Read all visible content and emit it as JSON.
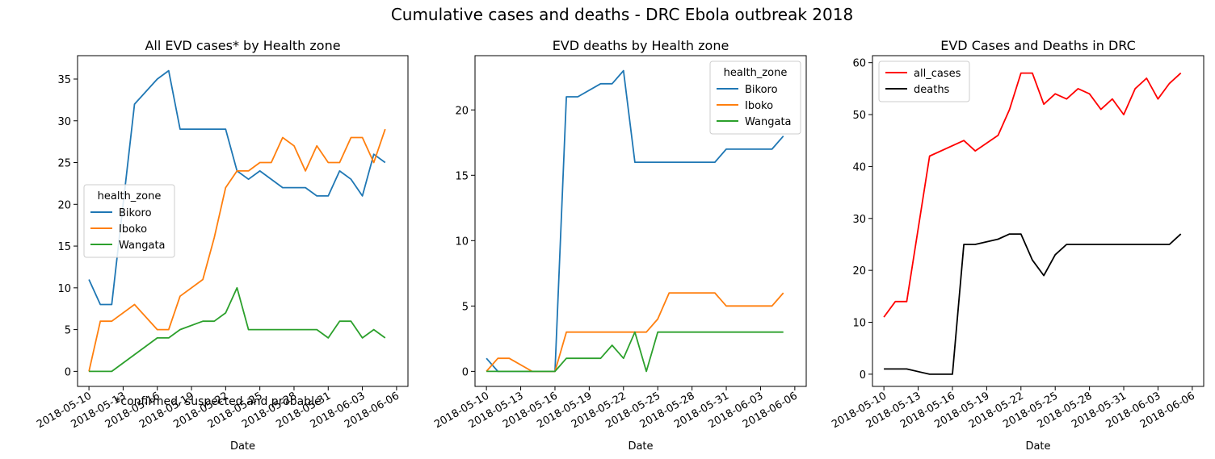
{
  "figure": {
    "suptitle": "Cumulative cases and deaths - DRC Ebola outbreak 2018",
    "footnote": "*confirmed, suspected and probable"
  },
  "chart_data": [
    {
      "type": "line",
      "title": "All EVD cases* by Health zone",
      "xlabel": "Date",
      "ylabel": "",
      "xlim": [
        "2018-05-09",
        "2018-06-07"
      ],
      "ylim": [
        -1.8,
        37.8
      ],
      "yticks": [
        0,
        5,
        10,
        15,
        20,
        25,
        30,
        35
      ],
      "xticks": [
        "2018-05-10",
        "2018-05-13",
        "2018-05-16",
        "2018-05-19",
        "2018-05-22",
        "2018-05-25",
        "2018-05-28",
        "2018-05-31",
        "2018-06-03",
        "2018-06-06"
      ],
      "legend": {
        "title": "health_zone",
        "position": "center-left"
      },
      "series": [
        {
          "name": "Bikoro",
          "color": "#1f77b4",
          "points": [
            [
              "2018-05-10",
              11
            ],
            [
              "2018-05-11",
              8
            ],
            [
              "2018-05-12",
              8
            ],
            [
              "2018-05-14",
              32
            ],
            [
              "2018-05-16",
              35
            ],
            [
              "2018-05-17",
              36
            ],
            [
              "2018-05-18",
              29
            ],
            [
              "2018-05-22",
              29
            ],
            [
              "2018-05-23",
              24
            ],
            [
              "2018-05-24",
              23
            ],
            [
              "2018-05-25",
              24
            ],
            [
              "2018-05-27",
              22
            ],
            [
              "2018-05-29",
              22
            ],
            [
              "2018-05-30",
              21
            ],
            [
              "2018-05-31",
              21
            ],
            [
              "2018-06-01",
              24
            ],
            [
              "2018-06-02",
              23
            ],
            [
              "2018-06-03",
              21
            ],
            [
              "2018-06-04",
              26
            ],
            [
              "2018-06-05",
              25
            ]
          ]
        },
        {
          "name": "Iboko",
          "color": "#ff7f0e",
          "points": [
            [
              "2018-05-10",
              0
            ],
            [
              "2018-05-11",
              6
            ],
            [
              "2018-05-12",
              6
            ],
            [
              "2018-05-14",
              8
            ],
            [
              "2018-05-16",
              5
            ],
            [
              "2018-05-17",
              5
            ],
            [
              "2018-05-18",
              9
            ],
            [
              "2018-05-20",
              11
            ],
            [
              "2018-05-21",
              16
            ],
            [
              "2018-05-22",
              22
            ],
            [
              "2018-05-23",
              24
            ],
            [
              "2018-05-24",
              24
            ],
            [
              "2018-05-25",
              25
            ],
            [
              "2018-05-26",
              25
            ],
            [
              "2018-05-27",
              28
            ],
            [
              "2018-05-28",
              27
            ],
            [
              "2018-05-29",
              24
            ],
            [
              "2018-05-30",
              27
            ],
            [
              "2018-05-31",
              25
            ],
            [
              "2018-06-01",
              25
            ],
            [
              "2018-06-02",
              28
            ],
            [
              "2018-06-03",
              28
            ],
            [
              "2018-06-04",
              25
            ],
            [
              "2018-06-05",
              29
            ]
          ]
        },
        {
          "name": "Wangata",
          "color": "#2ca02c",
          "points": [
            [
              "2018-05-10",
              0
            ],
            [
              "2018-05-12",
              0
            ],
            [
              "2018-05-16",
              4
            ],
            [
              "2018-05-17",
              4
            ],
            [
              "2018-05-18",
              5
            ],
            [
              "2018-05-20",
              6
            ],
            [
              "2018-05-21",
              6
            ],
            [
              "2018-05-22",
              7
            ],
            [
              "2018-05-23",
              10
            ],
            [
              "2018-05-24",
              5
            ],
            [
              "2018-05-30",
              5
            ],
            [
              "2018-05-31",
              4
            ],
            [
              "2018-06-01",
              6
            ],
            [
              "2018-06-02",
              6
            ],
            [
              "2018-06-03",
              4
            ],
            [
              "2018-06-04",
              5
            ],
            [
              "2018-06-05",
              4
            ]
          ]
        }
      ]
    },
    {
      "type": "line",
      "title": "EVD deaths by Health zone",
      "xlabel": "Date",
      "ylabel": "",
      "xlim": [
        "2018-05-09",
        "2018-06-07"
      ],
      "ylim": [
        -1.15,
        24.15
      ],
      "yticks": [
        0,
        5,
        10,
        15,
        20
      ],
      "xticks": [
        "2018-05-10",
        "2018-05-13",
        "2018-05-16",
        "2018-05-19",
        "2018-05-22",
        "2018-05-25",
        "2018-05-28",
        "2018-05-31",
        "2018-06-03",
        "2018-06-06"
      ],
      "legend": {
        "title": "health_zone",
        "position": "upper-right"
      },
      "series": [
        {
          "name": "Bikoro",
          "color": "#1f77b4",
          "points": [
            [
              "2018-05-10",
              1
            ],
            [
              "2018-05-11",
              0
            ],
            [
              "2018-05-16",
              0
            ],
            [
              "2018-05-17",
              21
            ],
            [
              "2018-05-18",
              21
            ],
            [
              "2018-05-20",
              22
            ],
            [
              "2018-05-21",
              22
            ],
            [
              "2018-05-22",
              23
            ],
            [
              "2018-05-23",
              16
            ],
            [
              "2018-05-30",
              16
            ],
            [
              "2018-05-31",
              17
            ],
            [
              "2018-06-04",
              17
            ],
            [
              "2018-06-05",
              18
            ]
          ]
        },
        {
          "name": "Iboko",
          "color": "#ff7f0e",
          "points": [
            [
              "2018-05-10",
              0
            ],
            [
              "2018-05-11",
              1
            ],
            [
              "2018-05-12",
              1
            ],
            [
              "2018-05-14",
              0
            ],
            [
              "2018-05-16",
              0
            ],
            [
              "2018-05-17",
              3
            ],
            [
              "2018-05-24",
              3
            ],
            [
              "2018-05-25",
              4
            ],
            [
              "2018-05-26",
              6
            ],
            [
              "2018-05-30",
              6
            ],
            [
              "2018-05-31",
              5
            ],
            [
              "2018-06-04",
              5
            ],
            [
              "2018-06-05",
              6
            ]
          ]
        },
        {
          "name": "Wangata",
          "color": "#2ca02c",
          "points": [
            [
              "2018-05-10",
              0
            ],
            [
              "2018-05-16",
              0
            ],
            [
              "2018-05-17",
              1
            ],
            [
              "2018-05-20",
              1
            ],
            [
              "2018-05-21",
              2
            ],
            [
              "2018-05-22",
              1
            ],
            [
              "2018-05-23",
              3
            ],
            [
              "2018-05-24",
              0
            ],
            [
              "2018-05-25",
              3
            ],
            [
              "2018-06-05",
              3
            ]
          ]
        }
      ]
    },
    {
      "type": "line",
      "title": "EVD Cases and Deaths in DRC",
      "xlabel": "Date",
      "ylabel": "",
      "xlim": [
        "2018-05-09",
        "2018-06-07"
      ],
      "ylim": [
        -2.35,
        61.35
      ],
      "yticks": [
        0,
        10,
        20,
        30,
        40,
        50,
        60
      ],
      "xticks": [
        "2018-05-10",
        "2018-05-13",
        "2018-05-16",
        "2018-05-19",
        "2018-05-22",
        "2018-05-25",
        "2018-05-28",
        "2018-05-31",
        "2018-06-03",
        "2018-06-06"
      ],
      "legend": {
        "title": "",
        "position": "upper-left"
      },
      "series": [
        {
          "name": "all_cases",
          "color": "#ff0000",
          "points": [
            [
              "2018-05-10",
              11
            ],
            [
              "2018-05-11",
              14
            ],
            [
              "2018-05-12",
              14
            ],
            [
              "2018-05-14",
              42
            ],
            [
              "2018-05-17",
              45
            ],
            [
              "2018-05-18",
              43
            ],
            [
              "2018-05-20",
              46
            ],
            [
              "2018-05-21",
              51
            ],
            [
              "2018-05-22",
              58
            ],
            [
              "2018-05-23",
              58
            ],
            [
              "2018-05-24",
              52
            ],
            [
              "2018-05-25",
              54
            ],
            [
              "2018-05-26",
              53
            ],
            [
              "2018-05-27",
              55
            ],
            [
              "2018-05-28",
              54
            ],
            [
              "2018-05-29",
              51
            ],
            [
              "2018-05-30",
              53
            ],
            [
              "2018-05-31",
              50
            ],
            [
              "2018-06-01",
              55
            ],
            [
              "2018-06-02",
              57
            ],
            [
              "2018-06-03",
              53
            ],
            [
              "2018-06-04",
              56
            ],
            [
              "2018-06-05",
              58
            ]
          ]
        },
        {
          "name": "deaths",
          "color": "#000000",
          "points": [
            [
              "2018-05-10",
              1
            ],
            [
              "2018-05-12",
              1
            ],
            [
              "2018-05-14",
              0
            ],
            [
              "2018-05-16",
              0
            ],
            [
              "2018-05-17",
              25
            ],
            [
              "2018-05-18",
              25
            ],
            [
              "2018-05-20",
              26
            ],
            [
              "2018-05-21",
              27
            ],
            [
              "2018-05-22",
              27
            ],
            [
              "2018-05-23",
              22
            ],
            [
              "2018-05-24",
              19
            ],
            [
              "2018-05-25",
              23
            ],
            [
              "2018-05-26",
              25
            ],
            [
              "2018-06-04",
              25
            ],
            [
              "2018-06-05",
              27
            ]
          ]
        }
      ]
    }
  ]
}
